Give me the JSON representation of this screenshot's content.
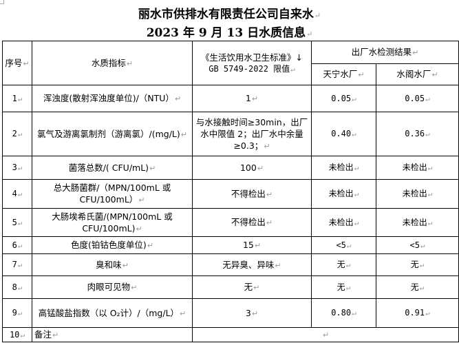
{
  "title": {
    "line1": "丽水市供排水有限责任公司自来水",
    "line2": "2023 年 9 月 13 日水质信息"
  },
  "table": {
    "headers": {
      "index": "序号",
      "indicator": "水质指标",
      "standard_line1": "《生活饮用水卫生标准》↓",
      "standard_line2": "GB 5749-2022 限值",
      "results": "出厂水检测结果",
      "plant1": "天宁水厂",
      "plant2": "水阁水厂"
    },
    "rows": [
      {
        "index": "1",
        "indicator": "浑浊度(散射浑浊度单位)/（NTU）",
        "limit": "1",
        "plant1": "0.05",
        "plant2": "0.05"
      },
      {
        "index": "2",
        "indicator": "氯气及游离氯制剂（游离氯）/(mg/L)",
        "limit": "与水接触时间≥30min，出厂水中限值 2；出厂水中余量≥0.3；",
        "plant1": "0.40",
        "plant2": "0.36"
      },
      {
        "index": "3",
        "indicator": "菌落总数/( CFU/mL)",
        "limit": "100",
        "plant1": "未检出",
        "plant2": "未检出"
      },
      {
        "index": "4",
        "indicator": "总大肠菌群/（MPN/100mL 或 CFU/100mL）",
        "limit": "不得检出",
        "plant1": "未检出",
        "plant2": "未检出"
      },
      {
        "index": "5",
        "indicator": "大肠埃希氏菌/(MPN/100mL 或 CFU/100mL)",
        "limit": "不得检出",
        "plant1": "未检出",
        "plant2": "未检出"
      },
      {
        "index": "6",
        "indicator": "色度(铂钴色度单位)",
        "limit": "15",
        "plant1": "<5",
        "plant2": "<5"
      },
      {
        "index": "7",
        "indicator": "臭和味",
        "limit": "无异臭、异味",
        "plant1": "无",
        "plant2": "无"
      },
      {
        "index": "8",
        "indicator": "肉眼可见物",
        "limit": "无",
        "plant1": "无",
        "plant2": "无"
      },
      {
        "index": "9",
        "indicator": "高锰酸盐指数（以 O₂计）/（mg/L）",
        "limit": "3",
        "plant1": "0.80",
        "plant2": "0.91"
      }
    ],
    "remark": {
      "index": "10",
      "label": "备注",
      "value": ""
    }
  }
}
